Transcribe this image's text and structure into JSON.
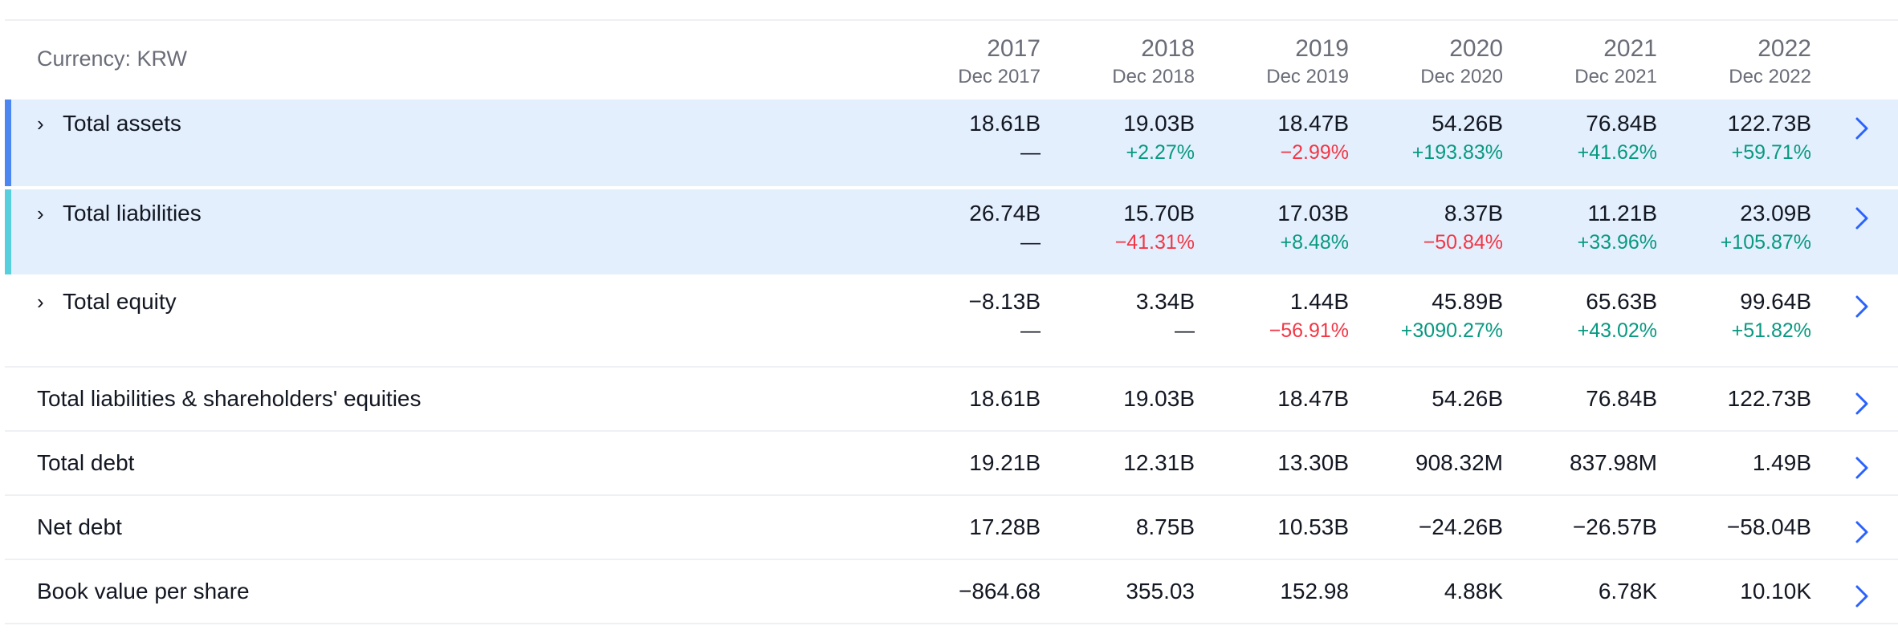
{
  "header": {
    "currency": "Currency: KRW",
    "columns": [
      {
        "year": "2017",
        "period": "Dec 2017"
      },
      {
        "year": "2018",
        "period": "Dec 2018"
      },
      {
        "year": "2019",
        "period": "Dec 2019"
      },
      {
        "year": "2020",
        "period": "Dec 2020"
      },
      {
        "year": "2021",
        "period": "Dec 2021"
      },
      {
        "year": "2022",
        "period": "Dec 2022"
      }
    ]
  },
  "colors": {
    "assets_bar": "#4c86f0",
    "liabilities_bar": "#58cfdc",
    "positive": "#089981",
    "negative": "#f23645",
    "link_arrow": "#2962ff"
  },
  "rows": [
    {
      "label": "Total assets",
      "expandable": true,
      "highlight": true,
      "bar_color": "#4c86f0",
      "values": [
        "18.61B",
        "19.03B",
        "18.47B",
        "54.26B",
        "76.84B",
        "122.73B"
      ],
      "changes": [
        "—",
        "+2.27%",
        "−2.99%",
        "+193.83%",
        "+41.62%",
        "+59.71%"
      ],
      "change_dirs": [
        "neu",
        "pos",
        "neg",
        "pos",
        "pos",
        "pos"
      ]
    },
    {
      "label": "Total liabilities",
      "expandable": true,
      "highlight": true,
      "bar_color": "#58cfdc",
      "values": [
        "26.74B",
        "15.70B",
        "17.03B",
        "8.37B",
        "11.21B",
        "23.09B"
      ],
      "changes": [
        "—",
        "−41.31%",
        "+8.48%",
        "−50.84%",
        "+33.96%",
        "+105.87%"
      ],
      "change_dirs": [
        "neu",
        "neg",
        "pos",
        "neg",
        "pos",
        "pos"
      ]
    },
    {
      "label": "Total equity",
      "expandable": true,
      "highlight": false,
      "values": [
        "−8.13B",
        "3.34B",
        "1.44B",
        "45.89B",
        "65.63B",
        "99.64B"
      ],
      "changes": [
        "—",
        "—",
        "−56.91%",
        "+3090.27%",
        "+43.02%",
        "+51.82%"
      ],
      "change_dirs": [
        "neu",
        "neu",
        "neg",
        "pos",
        "pos",
        "pos"
      ]
    },
    {
      "label": "Total liabilities & shareholders' equities",
      "expandable": false,
      "highlight": false,
      "values": [
        "18.61B",
        "19.03B",
        "18.47B",
        "54.26B",
        "76.84B",
        "122.73B"
      ]
    },
    {
      "label": "Total debt",
      "expandable": false,
      "highlight": false,
      "values": [
        "19.21B",
        "12.31B",
        "13.30B",
        "908.32M",
        "837.98M",
        "1.49B"
      ]
    },
    {
      "label": "Net debt",
      "expandable": false,
      "highlight": false,
      "values": [
        "17.28B",
        "8.75B",
        "10.53B",
        "−24.26B",
        "−26.57B",
        "−58.04B"
      ]
    },
    {
      "label": "Book value per share",
      "expandable": false,
      "highlight": false,
      "values": [
        "−864.68",
        "355.03",
        "152.98",
        "4.88K",
        "6.78K",
        "10.10K"
      ]
    }
  ]
}
